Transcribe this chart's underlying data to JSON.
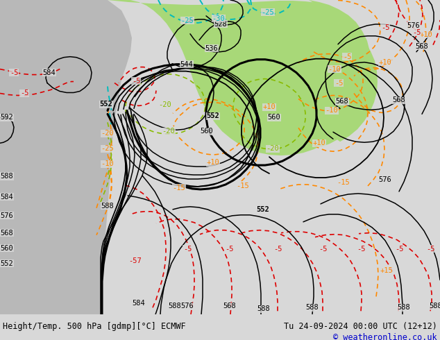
{
  "title_left": "Height/Temp. 500 hPa [gdmp][°C] ECMWF",
  "title_right": "Tu 24-09-2024 00:00 UTC (12+12)",
  "copyright": "© weatheronline.co.uk",
  "bg_color": "#d8d8d8",
  "green_color": "#a8d878",
  "gray_color": "#b8b8b8",
  "bottom_bar_color": "#e0e0e0",
  "bottom_text_color": "#000000",
  "copyright_color": "#0000cc",
  "title_fontsize": 8.5,
  "copyright_fontsize": 8.5,
  "figsize": [
    6.34,
    4.9
  ],
  "dpi": 100
}
